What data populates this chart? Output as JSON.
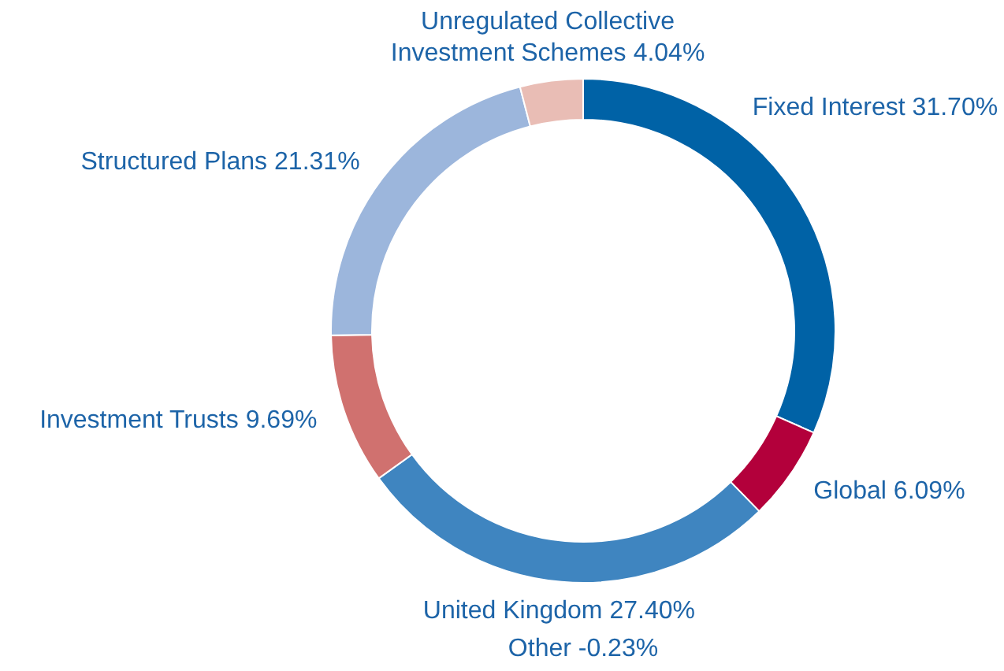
{
  "chart_data": {
    "type": "donut",
    "categories": [
      "Fixed Interest",
      "Global",
      "United Kingdom",
      "Investment Trusts",
      "Structured Plans",
      "Unregulated Collective Investment Schemes"
    ],
    "values": [
      31.7,
      6.09,
      27.4,
      9.69,
      21.31,
      4.04
    ],
    "value_labels": [
      "31.70%",
      "6.09%",
      "27.40%",
      "9.69%",
      "21.31%",
      "4.04%"
    ],
    "colors": [
      "#0062a6",
      "#b3003b",
      "#3f85c0",
      "#d0716f",
      "#9cb6dc",
      "#e9bdb5"
    ],
    "annotations": [
      "Other -0.23%"
    ]
  }
}
